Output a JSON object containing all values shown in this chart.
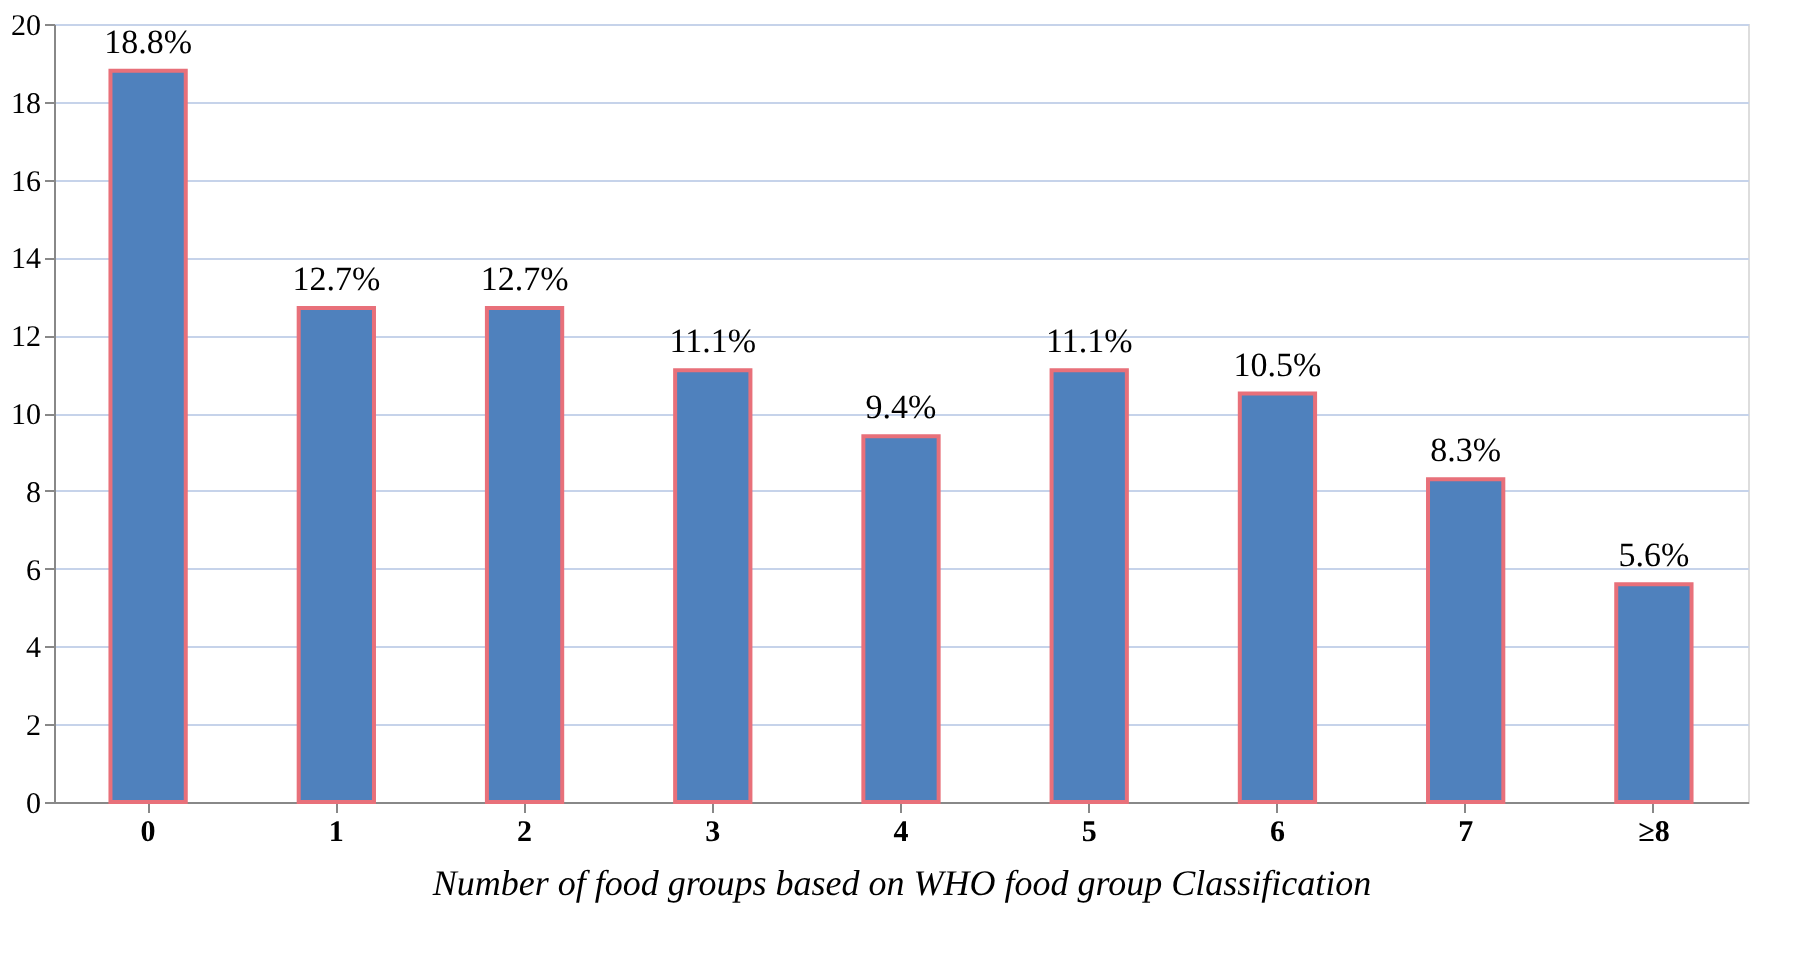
{
  "chart_data": {
    "type": "bar",
    "xlabel": "Number of food groups based on WHO food group Classification",
    "categories": [
      "0",
      "1",
      "2",
      "3",
      "4",
      "5",
      "6",
      "7",
      "≥8"
    ],
    "values": [
      18.8,
      12.7,
      12.7,
      11.1,
      9.4,
      11.1,
      10.5,
      8.3,
      5.6
    ],
    "value_labels": [
      "18.8%",
      "12.7%",
      "12.7%",
      "11.1%",
      "9.4%",
      "11.1%",
      "10.5%",
      "8.3%",
      "5.6%"
    ],
    "color": "#4f81bd",
    "ylim": [
      0,
      20
    ],
    "yticks": [
      0,
      2,
      4,
      6,
      8,
      10,
      12,
      14,
      16,
      18,
      20
    ],
    "grid": "y"
  }
}
